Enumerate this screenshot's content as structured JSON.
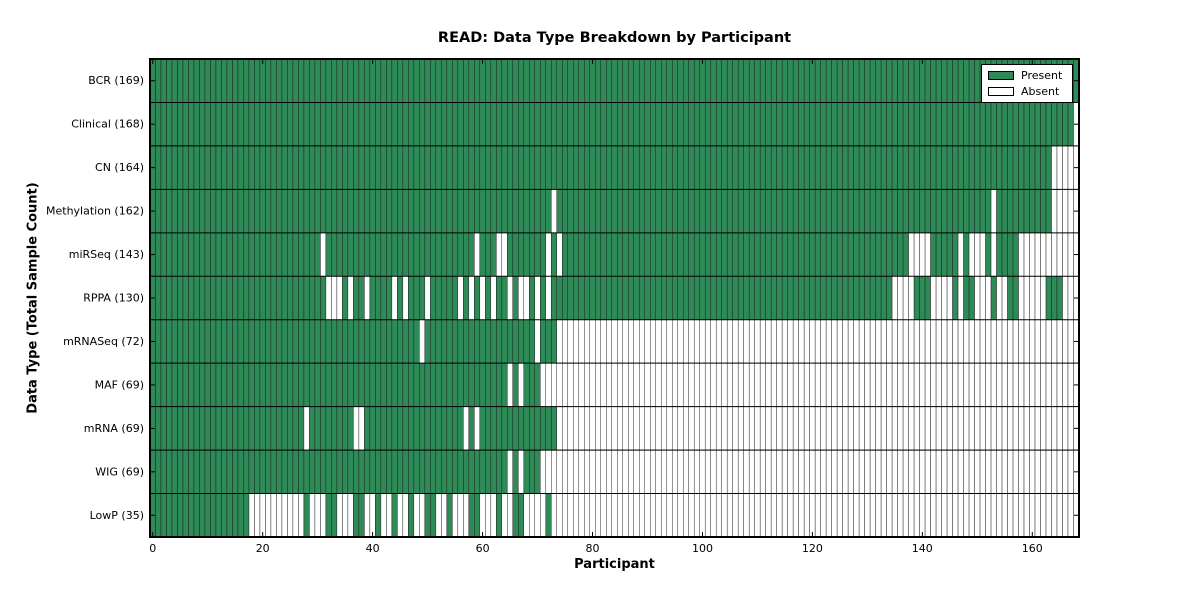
{
  "chart_data": {
    "type": "heatmap",
    "title": "READ: Data Type Breakdown by Participant",
    "xlabel": "Participant",
    "ylabel": "Data Type (Total Sample Count)",
    "x_ticks": [
      0,
      20,
      40,
      60,
      80,
      100,
      120,
      140,
      160
    ],
    "n_participants": 169,
    "grid": "cell-outlines",
    "legend_position": "upper-right",
    "colors": {
      "present": "#2e8b57",
      "absent": "#ffffff",
      "cell_edge": "#1a1a1a",
      "row_separator": "#000000",
      "frame": "#000000"
    },
    "legend": [
      {
        "label": "Present",
        "color": "#2e8b57"
      },
      {
        "label": "Absent",
        "color": "#ffffff"
      }
    ],
    "rows": [
      {
        "label": "BCR (169)",
        "datatype": "BCR",
        "present_count": 169,
        "absent_ranges": []
      },
      {
        "label": "Clinical (168)",
        "datatype": "Clinical",
        "present_count": 168,
        "absent_ranges": [
          [
            168,
            168
          ]
        ]
      },
      {
        "label": "CN (164)",
        "datatype": "CN",
        "present_count": 164,
        "absent_ranges": [
          [
            164,
            168
          ]
        ]
      },
      {
        "label": "Methylation (162)",
        "datatype": "Methylation",
        "present_count": 162,
        "absent_ranges": [
          [
            73,
            73
          ],
          [
            153,
            153
          ],
          [
            164,
            168
          ]
        ]
      },
      {
        "label": "miRSeq (143)",
        "datatype": "miRSeq",
        "present_count": 143,
        "absent_ranges": [
          [
            31,
            31
          ],
          [
            59,
            59
          ],
          [
            63,
            64
          ],
          [
            72,
            72
          ],
          [
            74,
            74
          ],
          [
            138,
            141
          ],
          [
            147,
            147
          ],
          [
            149,
            151
          ],
          [
            153,
            153
          ],
          [
            158,
            168
          ]
        ]
      },
      {
        "label": "RPPA (130)",
        "datatype": "RPPA",
        "present_count": 130,
        "absent_ranges": [
          [
            32,
            34
          ],
          [
            36,
            36
          ],
          [
            39,
            39
          ],
          [
            44,
            44
          ],
          [
            46,
            46
          ],
          [
            50,
            50
          ],
          [
            56,
            56
          ],
          [
            58,
            58
          ],
          [
            60,
            60
          ],
          [
            62,
            62
          ],
          [
            65,
            65
          ],
          [
            67,
            68
          ],
          [
            70,
            70
          ],
          [
            72,
            72
          ],
          [
            135,
            138
          ],
          [
            142,
            145
          ],
          [
            147,
            147
          ],
          [
            150,
            152
          ],
          [
            154,
            155
          ],
          [
            158,
            162
          ],
          [
            166,
            168
          ]
        ]
      },
      {
        "label": "mRNASeq (72)",
        "datatype": "mRNASeq",
        "present_count": 72,
        "absent_ranges": [
          [
            49,
            49
          ],
          [
            70,
            70
          ],
          [
            74,
            168
          ]
        ]
      },
      {
        "label": "MAF (69)",
        "datatype": "MAF",
        "present_count": 69,
        "absent_ranges": [
          [
            65,
            65
          ],
          [
            67,
            67
          ],
          [
            71,
            168
          ]
        ]
      },
      {
        "label": "mRNA (69)",
        "datatype": "mRNA",
        "present_count": 69,
        "absent_ranges": [
          [
            28,
            28
          ],
          [
            37,
            38
          ],
          [
            57,
            57
          ],
          [
            59,
            59
          ],
          [
            74,
            168
          ]
        ]
      },
      {
        "label": "WIG (69)",
        "datatype": "WIG",
        "present_count": 69,
        "absent_ranges": [
          [
            65,
            65
          ],
          [
            67,
            67
          ],
          [
            71,
            168
          ]
        ]
      },
      {
        "label": "LowP (35)",
        "datatype": "LowP",
        "present_count": 35,
        "absent_ranges": [
          [
            18,
            27
          ],
          [
            29,
            31
          ],
          [
            34,
            36
          ],
          [
            39,
            40
          ],
          [
            42,
            43
          ],
          [
            45,
            46
          ],
          [
            48,
            49
          ],
          [
            52,
            53
          ],
          [
            55,
            57
          ],
          [
            60,
            62
          ],
          [
            64,
            65
          ],
          [
            68,
            71
          ],
          [
            73,
            168
          ]
        ]
      }
    ]
  }
}
